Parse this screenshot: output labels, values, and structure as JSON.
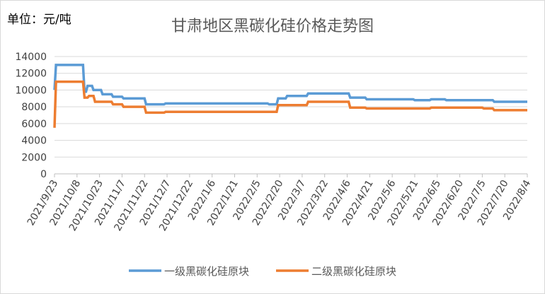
{
  "chart_data": {
    "type": "line",
    "title": "甘肃地区黑碳化硅价格走势图",
    "ylabel": "单位：元/吨",
    "xlabel": "",
    "ylim": [
      0,
      14000
    ],
    "yticks": [
      0,
      2000,
      4000,
      6000,
      8000,
      10000,
      12000,
      14000
    ],
    "grid": "horizontal",
    "legend_position": "bottom",
    "x_tick_labels": [
      "2021/9/23",
      "2021/10/8",
      "2021/10/23",
      "2021/11/7",
      "2021/11/22",
      "2021/12/7",
      "2021/12/22",
      "2022/1/6",
      "2022/1/21",
      "2022/2/5",
      "2022/2/20",
      "2022/3/7",
      "2022/3/22",
      "2022/4/6",
      "2022/4/21",
      "2022/5/6",
      "2022/5/21",
      "2022/6/5",
      "2022/6/20",
      "2022/7/5",
      "2022/7/20",
      "2022/8/4"
    ],
    "x_range": [
      "2021/9/23",
      "2022/8/4"
    ],
    "series": [
      {
        "name": "一级黑碳化硅原块",
        "color": "#5b9bd5",
        "points": [
          [
            "2021/9/23",
            10000
          ],
          [
            "2021/9/24",
            13000
          ],
          [
            "2021/10/8",
            13000
          ],
          [
            "2021/10/12",
            13000
          ],
          [
            "2021/10/13",
            9800
          ],
          [
            "2021/10/14",
            9800
          ],
          [
            "2021/10/15",
            10500
          ],
          [
            "2021/10/18",
            10500
          ],
          [
            "2021/10/19",
            10000
          ],
          [
            "2021/10/24",
            10000
          ],
          [
            "2021/10/25",
            9500
          ],
          [
            "2021/10/31",
            9500
          ],
          [
            "2021/11/1",
            9200
          ],
          [
            "2021/11/7",
            9200
          ],
          [
            "2021/11/8",
            9000
          ],
          [
            "2021/11/22",
            9000
          ],
          [
            "2021/11/23",
            8300
          ],
          [
            "2021/12/5",
            8300
          ],
          [
            "2021/12/6",
            8400
          ],
          [
            "2022/2/12",
            8400
          ],
          [
            "2022/2/13",
            8300
          ],
          [
            "2022/2/18",
            8300
          ],
          [
            "2022/2/19",
            9000
          ],
          [
            "2022/2/24",
            9000
          ],
          [
            "2022/2/25",
            9300
          ],
          [
            "2022/3/10",
            9300
          ],
          [
            "2022/3/11",
            9600
          ],
          [
            "2022/4/7",
            9600
          ],
          [
            "2022/4/8",
            9100
          ],
          [
            "2022/4/18",
            9100
          ],
          [
            "2022/4/19",
            8900
          ],
          [
            "2022/5/20",
            8900
          ],
          [
            "2022/5/21",
            8800
          ],
          [
            "2022/5/31",
            8800
          ],
          [
            "2022/6/1",
            8900
          ],
          [
            "2022/6/10",
            8900
          ],
          [
            "2022/6/11",
            8800
          ],
          [
            "2022/7/12",
            8800
          ],
          [
            "2022/7/13",
            8600
          ],
          [
            "2022/8/4",
            8600
          ]
        ]
      },
      {
        "name": "二级黑碳化硅原块",
        "color": "#ed7d31",
        "points": [
          [
            "2021/9/23",
            5500
          ],
          [
            "2021/9/24",
            11000
          ],
          [
            "2021/10/12",
            11000
          ],
          [
            "2021/10/13",
            9100
          ],
          [
            "2021/10/15",
            9100
          ],
          [
            "2021/10/16",
            9300
          ],
          [
            "2021/10/19",
            9300
          ],
          [
            "2021/10/20",
            8600
          ],
          [
            "2021/10/31",
            8600
          ],
          [
            "2021/11/1",
            8300
          ],
          [
            "2021/11/7",
            8300
          ],
          [
            "2021/11/8",
            8000
          ],
          [
            "2021/11/22",
            8000
          ],
          [
            "2021/11/23",
            7300
          ],
          [
            "2021/12/5",
            7300
          ],
          [
            "2021/12/6",
            7400
          ],
          [
            "2022/2/18",
            7400
          ],
          [
            "2022/2/19",
            8200
          ],
          [
            "2022/3/10",
            8200
          ],
          [
            "2022/3/11",
            8600
          ],
          [
            "2022/4/7",
            8600
          ],
          [
            "2022/4/8",
            7900
          ],
          [
            "2022/4/18",
            7900
          ],
          [
            "2022/4/19",
            7800
          ],
          [
            "2022/5/31",
            7800
          ],
          [
            "2022/6/1",
            7900
          ],
          [
            "2022/7/5",
            7900
          ],
          [
            "2022/7/6",
            7800
          ],
          [
            "2022/7/12",
            7800
          ],
          [
            "2022/7/13",
            7600
          ],
          [
            "2022/8/4",
            7600
          ]
        ]
      }
    ]
  }
}
